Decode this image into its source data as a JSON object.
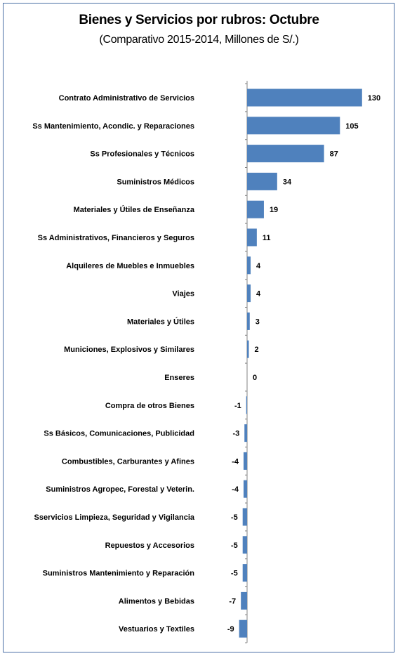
{
  "chart_data": {
    "type": "bar",
    "orientation": "horizontal",
    "title": "Bienes y Servicios por rubros: Octubre",
    "subtitle": "(Comparativo 2015-2014, Millones de S/.)",
    "xlabel": "",
    "ylabel": "",
    "grid": false,
    "bar_color": "#4f81bd",
    "categories": [
      "Contrato Administrativo de Servicios",
      "Ss Mantenimiento, Acondic. y Reparaciones",
      "Ss Profesionales y Técnicos",
      "Suministros Médicos",
      "Materiales y Útiles de Enseñanza",
      "Ss Administrativos, Financieros y Seguros",
      "Alquileres de Muebles e Inmuebles",
      "Viajes",
      "Materiales y Útiles",
      "Municiones, Explosivos y Similares",
      "Enseres",
      "Compra de otros Bienes",
      "Ss Básicos, Comunicaciones, Publicidad",
      "Combustibles, Carburantes y Afines",
      "Suministros Agropec, Forestal y Veterin.",
      "Sservicios Limpieza, Seguridad y Vigilancia",
      "Repuestos y Accesorios",
      "Suministros Mantenimiento y Reparación",
      "Alimentos y Bebidas",
      "Vestuarios y Textiles"
    ],
    "values": [
      130,
      105,
      87,
      34,
      19,
      11,
      4,
      4,
      3,
      2,
      0,
      -1,
      -3,
      -4,
      -4,
      -5,
      -5,
      -5,
      -7,
      -9
    ],
    "data_labels": [
      "130",
      "105",
      "87",
      "34",
      "19",
      "11",
      "4",
      "4",
      "3",
      "2",
      "0",
      "-1",
      "-3",
      "-4",
      "-4",
      "-5",
      "-5",
      "-5",
      "-7",
      "-9"
    ],
    "xlim": [
      -10,
      135
    ]
  }
}
